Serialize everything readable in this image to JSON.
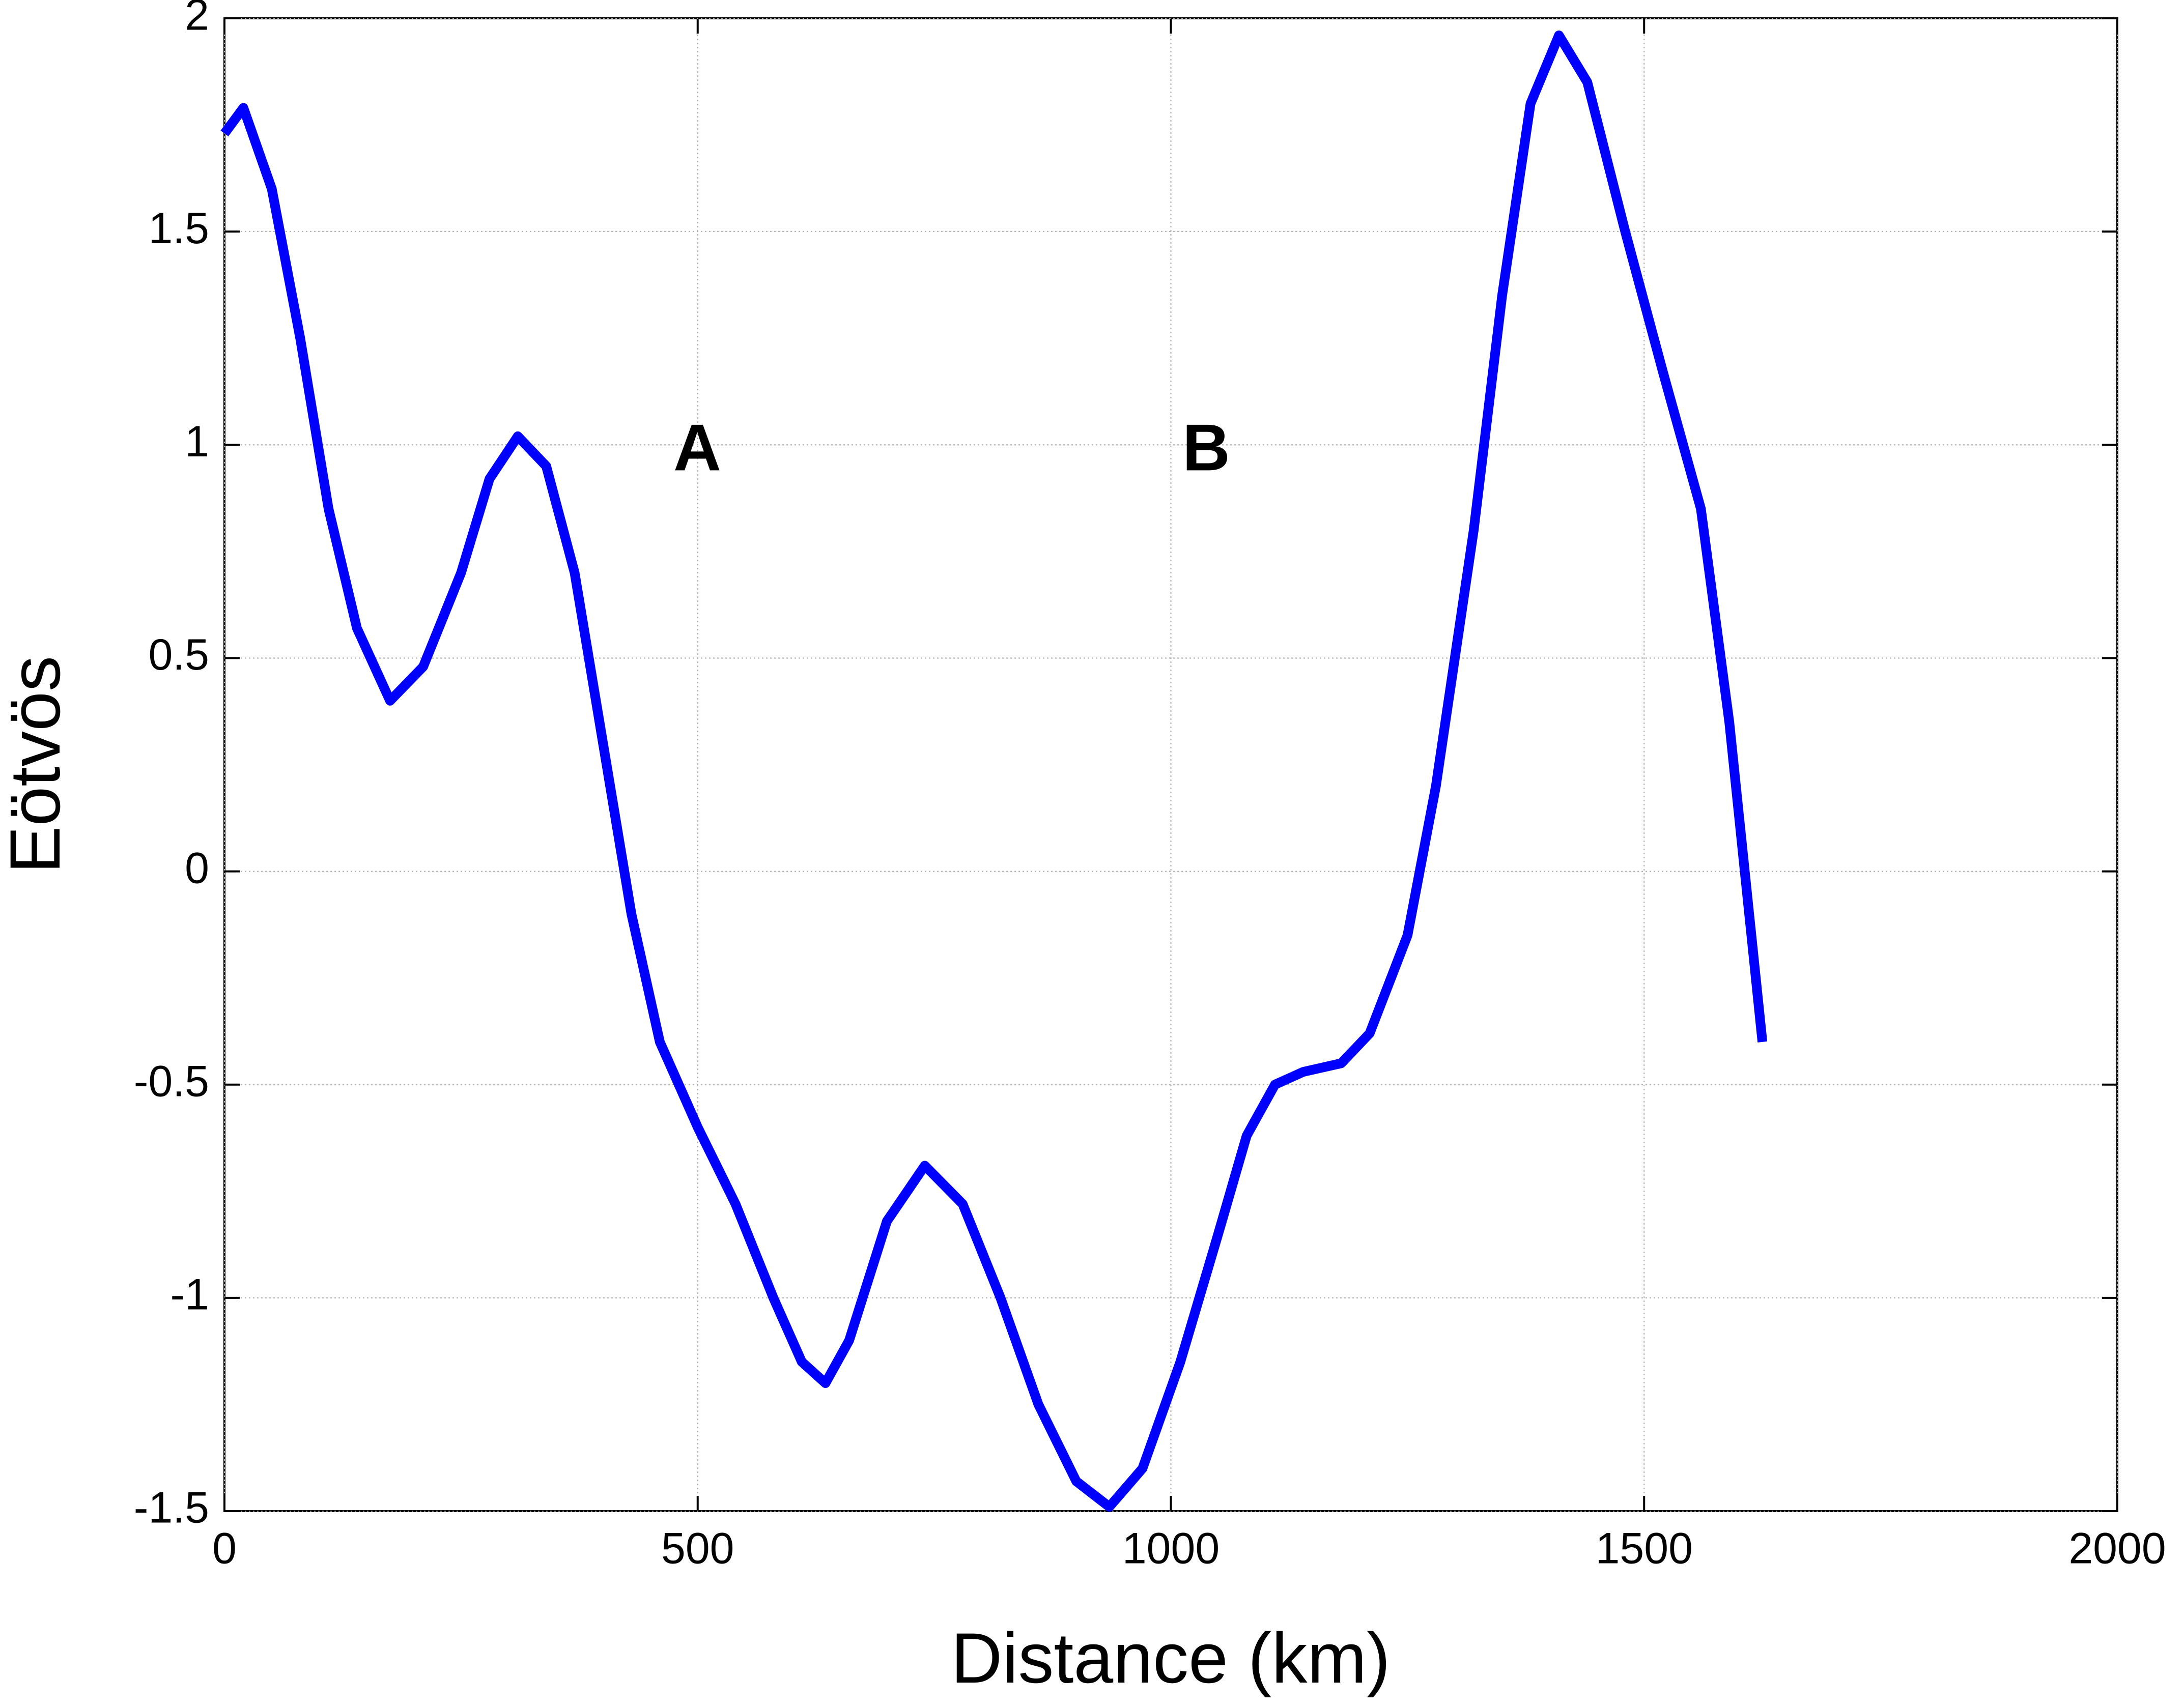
{
  "chart_data": {
    "type": "line",
    "xlabel": "Distance (km)",
    "ylabel": "Eötvös",
    "annotations": [
      "A",
      "B"
    ],
    "x": [
      0,
      20,
      50,
      80,
      110,
      140,
      175,
      210,
      250,
      280,
      310,
      340,
      370,
      400,
      430,
      460,
      500,
      540,
      580,
      610,
      635,
      660,
      700,
      740,
      780,
      820,
      860,
      900,
      935,
      970,
      1010,
      1050,
      1080,
      1110,
      1140,
      1180,
      1210,
      1250,
      1280,
      1320,
      1350,
      1380,
      1410,
      1440,
      1480,
      1520,
      1560,
      1590,
      1625
    ],
    "values": [
      1.73,
      1.79,
      1.6,
      1.25,
      0.85,
      0.57,
      0.4,
      0.48,
      0.7,
      0.92,
      1.02,
      0.95,
      0.7,
      0.3,
      -0.1,
      -0.4,
      -0.6,
      -0.78,
      -1.0,
      -1.15,
      -1.2,
      -1.1,
      -0.82,
      -0.69,
      -0.78,
      -1.0,
      -1.25,
      -1.43,
      -1.49,
      -1.4,
      -1.15,
      -0.85,
      -0.62,
      -0.5,
      -0.47,
      -0.45,
      -0.38,
      -0.15,
      0.2,
      0.8,
      1.35,
      1.8,
      1.96,
      1.85,
      1.5,
      1.17,
      0.85,
      0.35,
      -0.4
    ],
    "color": "#0000ff",
    "xlim": [
      0,
      2000
    ],
    "xticks": [
      0,
      500,
      1000,
      1500,
      2000
    ],
    "ylim": [
      -1.5,
      2
    ],
    "yticks": [
      -1.5,
      -1,
      -0.5,
      0,
      0.5,
      1,
      1.5,
      2
    ],
    "grid": true
  }
}
